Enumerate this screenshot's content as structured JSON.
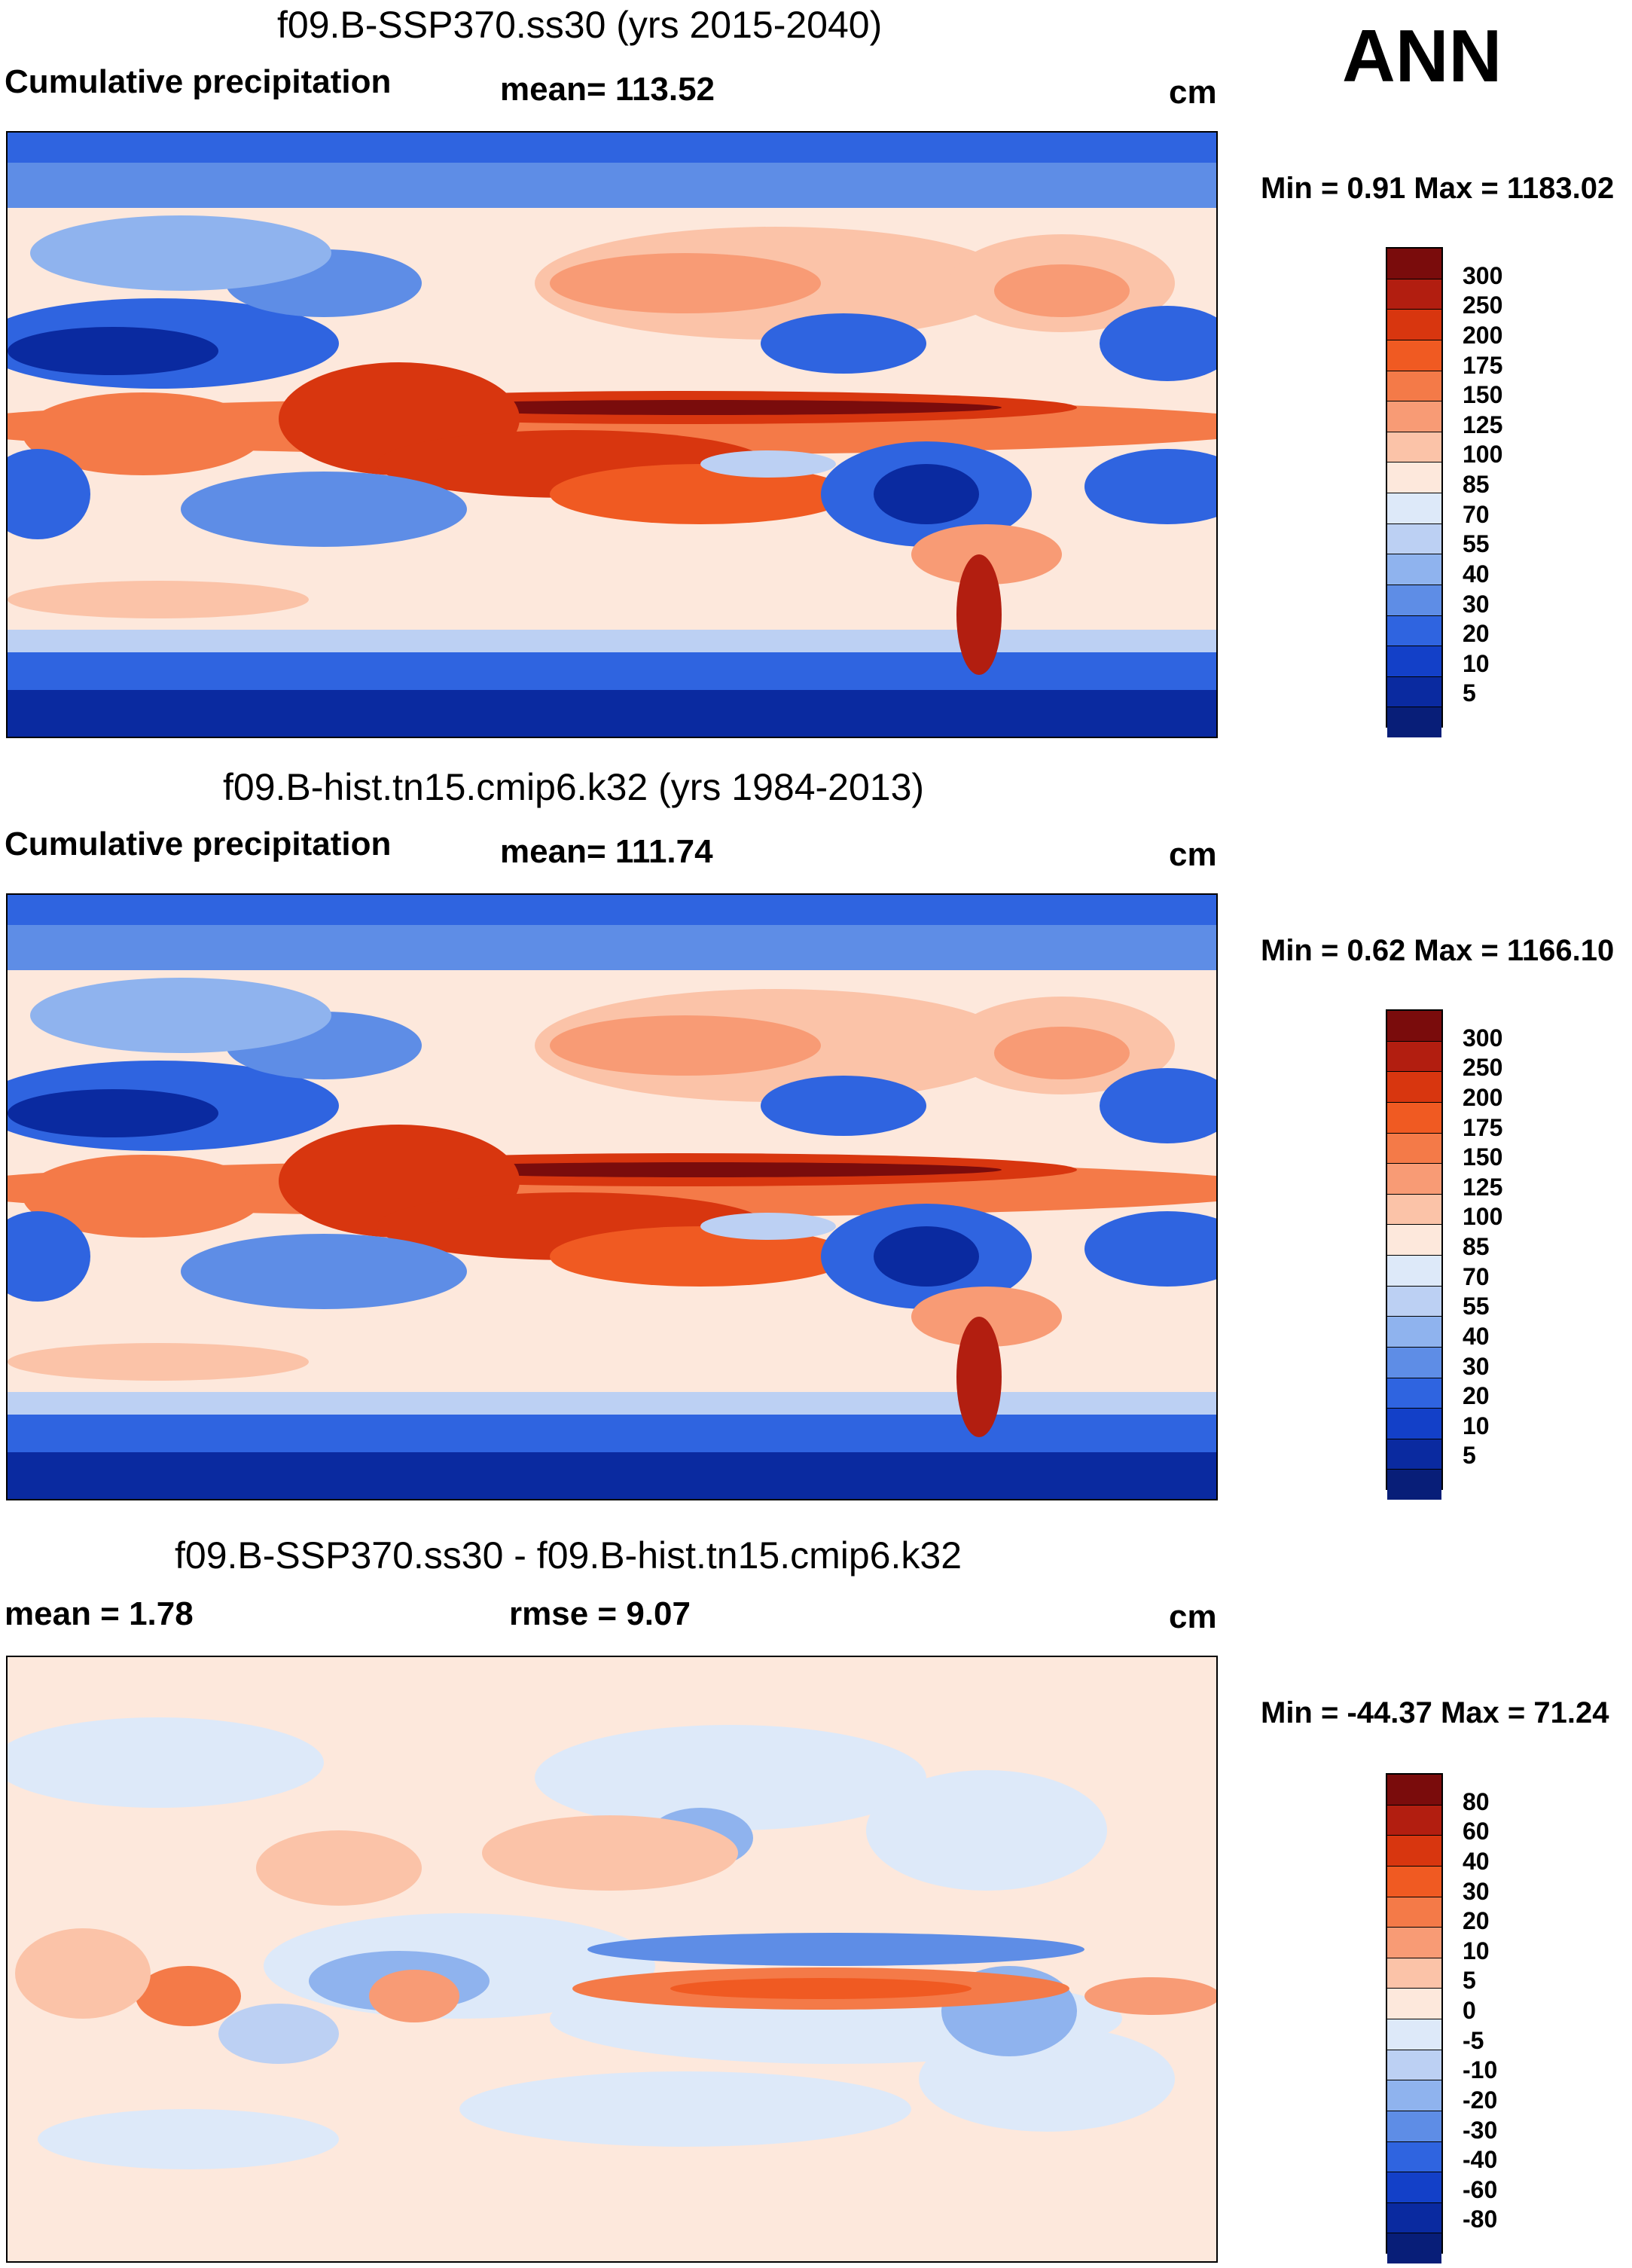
{
  "season": "ANN",
  "panels": [
    {
      "title": "f09.B-SSP370.ss30 (yrs 2015-2040)",
      "left_label": "Cumulative precipitation",
      "center_label": "mean= 113.52",
      "units": "cm",
      "minmax": "Min =   0.91 Max = 1183.02",
      "type": "absolute"
    },
    {
      "title": "f09.B-hist.tn15.cmip6.k32 (yrs 1984-2013)",
      "left_label": "Cumulative precipitation",
      "center_label": "mean= 111.74",
      "units": "cm",
      "minmax": "Min =   0.62 Max = 1166.10",
      "type": "absolute"
    },
    {
      "title": "f09.B-SSP370.ss30 - f09.B-hist.tn15.cmip6.k32",
      "left_label": "mean =   1.78",
      "center_label": "rmse =   9.07",
      "units": "cm",
      "minmax": "Min = -44.37 Max =  71.24",
      "type": "difference"
    }
  ],
  "colorbar_abs": {
    "ticks": [
      "300",
      "250",
      "200",
      "175",
      "150",
      "125",
      "100",
      "85",
      "70",
      "55",
      "40",
      "30",
      "20",
      "10",
      "5"
    ],
    "colors": [
      "#7a0c0c",
      "#b21e10",
      "#d8360f",
      "#f05a22",
      "#f47a48",
      "#f89b75",
      "#fbc3a8",
      "#fde8dc",
      "#dde9f9",
      "#bcd0f3",
      "#8fb3ee",
      "#5e8de6",
      "#2f64e0",
      "#1340c8",
      "#0a2aa0",
      "#081e78"
    ]
  },
  "colorbar_diff": {
    "ticks": [
      "80",
      "60",
      "40",
      "30",
      "20",
      "10",
      "5",
      "0",
      "-5",
      "-10",
      "-20",
      "-30",
      "-40",
      "-60",
      "-80"
    ],
    "colors": [
      "#7a0c0c",
      "#b21e10",
      "#d8360f",
      "#f05a22",
      "#f47a48",
      "#f89b75",
      "#fbc3a8",
      "#fde8dc",
      "#dde9f9",
      "#bcd0f3",
      "#8fb3ee",
      "#5e8de6",
      "#2f64e0",
      "#1340c8",
      "#0a2aa0",
      "#081e78"
    ]
  }
}
